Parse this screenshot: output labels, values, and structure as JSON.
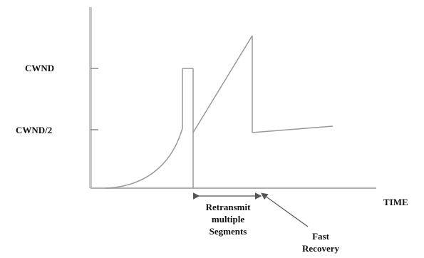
{
  "diagram": {
    "y_labels": {
      "cwnd": "CWND",
      "cwnd_half": "CWND/2"
    },
    "x_label": "TIME",
    "annotation_retransmit": [
      "Retransmit",
      "multiple",
      "Segments"
    ],
    "annotation_fast_recovery": [
      "Fast",
      "Recovery"
    ],
    "colors": {
      "axis": "#c8c8c8",
      "curve": "#999999",
      "text": "#111111"
    }
  }
}
